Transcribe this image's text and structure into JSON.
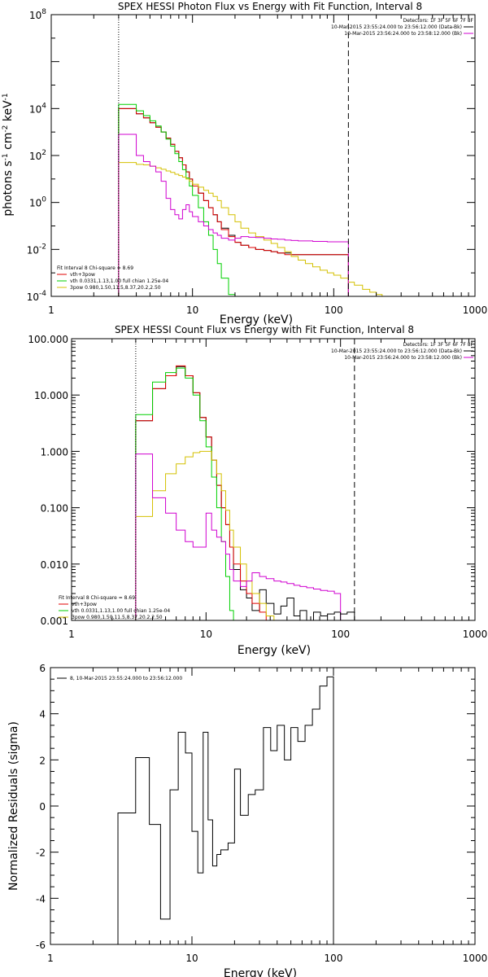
{
  "panels": [
    {
      "id": "photon",
      "title": "SPEX HESSI Photon Flux vs Energy with Fit Function, Interval 8",
      "xlabel": "Energy (keV)",
      "ylabel_main": "photons s",
      "ylabel_sup1": "-1",
      "ylabel_mid": " cm",
      "ylabel_sup2": "-2",
      "ylabel_end": " keV",
      "ylabel_sup3": "-1",
      "ytick_base": "10",
      "yticks": [
        {
          "value": 0.0001,
          "exp": "-4"
        },
        {
          "value": 0.01,
          "exp": "-2"
        },
        {
          "value": 1,
          "exp": "0"
        },
        {
          "value": 100,
          "exp": "2"
        },
        {
          "value": 10000,
          "exp": "4"
        },
        {
          "value": 100000000.0,
          "exp": "8"
        }
      ],
      "xticks": [
        "1",
        "10",
        "100",
        "1000"
      ],
      "legend_right": [
        "Detectors: 1F 3F 5F 6F 7F 8F",
        "10-Mar-2015 23:55:24.000 to 23:56:12.000 (Data-Bk)",
        "10-Mar-2015 23:56:24.000 to 23:58:12.000 (Bk)"
      ],
      "legend_left": [
        "Fit Interval 8   Chi-square = 8.69",
        "vth+3pow",
        "vth 0.0331,1.13,1.00  full chian 1.25e-04",
        "3pow 0.980,1.50,11.5,8.37,20.2,2.50"
      ]
    },
    {
      "id": "count",
      "title": "SPEX HESSI Count Flux vs Energy with Fit Function, Interval 8",
      "xlabel": "Energy (keV)",
      "yticks": [
        "100.000",
        "10.000",
        "1.000",
        "0.100",
        "0.010",
        "0.001"
      ],
      "xticks": [
        "1",
        "10",
        "100",
        "1000"
      ],
      "legend_right": [
        "Detectors: 1F 3F 5F 6F 7F 8F",
        "10-Mar-2015 23:55:24.000 to 23:56:12.000 (Data-Bk)",
        "10-Mar-2015 23:56:24.000 to 23:58:12.000 (Bk)"
      ],
      "legend_left": [
        "Fit Interval 8   Chi-square = 8.69",
        "vth+3pow",
        "vth 0.0331,1.13,1.00  full chian 1.25e-04",
        "3pow 0.980,1.50,11.5,8.37,20.2,2.50"
      ]
    },
    {
      "id": "resid",
      "ylabel": "Normalized Residuals (sigma)",
      "xlabel": "Energy (keV)",
      "yticks": [
        "6",
        "4",
        "2",
        "0",
        "-2",
        "-4",
        "-6"
      ],
      "xticks": [
        "1",
        "10",
        "100",
        "1000"
      ],
      "legend": "8, 10-Mar-2015 23:55:24.000 to 23:56:12.000"
    }
  ],
  "colors": {
    "data": "#000000",
    "total_fit": "#e00000",
    "thermal": "#00d000",
    "power_law": "#d4c000",
    "background": "#d000d0"
  },
  "chart_data": [
    {
      "type": "line",
      "title": "SPEX HESSI Photon Flux vs Energy with Fit Function, Interval 8",
      "xlabel": "Energy (keV)",
      "ylabel": "photons s^-1 cm^-2 keV^-1",
      "xscale": "log",
      "yscale": "log",
      "xlim": [
        1,
        1000
      ],
      "ylim": [
        0.0001,
        100000000
      ],
      "vlines": [
        3,
        127
      ],
      "x_edges": [
        3,
        3.5,
        4,
        4.5,
        5,
        5.5,
        6,
        6.5,
        7,
        7.5,
        8,
        8.5,
        9,
        9.5,
        10,
        11,
        12,
        13,
        14,
        15,
        16,
        18,
        20,
        22,
        25,
        28,
        32,
        36,
        40,
        45,
        50,
        56,
        63,
        71,
        80,
        90,
        100,
        112,
        127,
        140,
        160,
        180,
        200,
        220,
        240,
        260
      ],
      "series": [
        {
          "name": "data",
          "values": [
            10000,
            10000,
            6000,
            4000,
            2500,
            1600,
            1000,
            550,
            300,
            150,
            80,
            40,
            20,
            10,
            5,
            2.5,
            1.2,
            0.6,
            0.3,
            0.15,
            0.08,
            0.04,
            0.02,
            0.015,
            0.012,
            0.01,
            0.009,
            0.008,
            0.007,
            0.007,
            0.006,
            0.006,
            0.006,
            0.006,
            0.006,
            0.006,
            0.006,
            0.006
          ]
        },
        {
          "name": "vth+3pow",
          "values": [
            10000,
            10000,
            6000,
            4000,
            2500,
            1600,
            1000,
            550,
            300,
            150,
            80,
            40,
            20,
            10,
            5,
            2.5,
            1.2,
            0.6,
            0.3,
            0.15,
            0.07,
            0.035,
            0.02,
            0.015,
            0.012,
            0.01,
            0.009,
            0.008,
            0.007,
            0.006,
            0.006,
            0.006,
            0.006,
            0.006,
            0.006,
            0.006,
            0.006,
            0.006
          ]
        },
        {
          "name": "vth 0.0331,1.13,1.00",
          "values": [
            15000,
            15000,
            8000,
            5000,
            3000,
            1800,
            1000,
            500,
            250,
            120,
            55,
            25,
            11,
            5,
            2,
            0.6,
            0.15,
            0.04,
            0.01,
            0.0025,
            0.0006,
            0.00012
          ]
        },
        {
          "name": "3pow 0.980,1.50,11.5,8.37,20.2,2.50",
          "values": [
            50,
            50,
            42,
            40,
            35,
            30,
            26,
            22,
            19,
            16,
            14,
            12,
            10,
            8,
            6,
            4.5,
            3.3,
            2.5,
            1.8,
            1.2,
            0.6,
            0.3,
            0.15,
            0.08,
            0.05,
            0.035,
            0.025,
            0.018,
            0.012,
            0.008,
            0.005,
            0.0035,
            0.0025,
            0.0018,
            0.0013,
            0.001,
            0.0008,
            0.0006,
            0.0004,
            0.0003,
            0.0002,
            0.00015,
            0.00012,
            0.0001,
            0.0001
          ]
        },
        {
          "name": "background",
          "values": [
            800,
            800,
            100,
            55,
            35,
            20,
            8,
            1.5,
            0.5,
            0.3,
            0.2,
            0.5,
            0.8,
            0.4,
            0.25,
            0.15,
            0.1,
            0.07,
            0.05,
            0.04,
            0.03,
            0.025,
            0.03,
            0.035,
            0.033,
            0.032,
            0.03,
            0.028,
            0.027,
            0.025,
            0.024,
            0.023,
            0.023,
            0.022,
            0.022,
            0.021,
            0.021,
            0.021
          ]
        }
      ]
    },
    {
      "type": "line",
      "title": "SPEX HESSI Count Flux vs Energy with Fit Function, Interval 8",
      "xlabel": "Energy (keV)",
      "xscale": "log",
      "yscale": "log",
      "xlim": [
        1,
        1000
      ],
      "ylim": [
        0.001,
        100
      ],
      "vlines": [
        3,
        127
      ],
      "x_edges": [
        3,
        4,
        5,
        6,
        7,
        8,
        9,
        10,
        11,
        12,
        13,
        14,
        15,
        16,
        18,
        20,
        22,
        25,
        28,
        32,
        36,
        40,
        45,
        50,
        56,
        63,
        71,
        80,
        90,
        100,
        112,
        127
      ],
      "series": [
        {
          "name": "data",
          "values": [
            3.5,
            13,
            22,
            32,
            22,
            11,
            4,
            1.8,
            0.7,
            0.25,
            0.1,
            0.05,
            0.02,
            0.008,
            0.0035,
            0.0025,
            0.0015,
            0.0035,
            0.002,
            0.0013,
            0.0018,
            0.0025,
            0.0012,
            0.0015,
            0.001,
            0.0014,
            0.0012,
            0.0013,
            0.0014,
            0.0013,
            0.0014
          ]
        },
        {
          "name": "vth+3pow",
          "values": [
            3.5,
            13,
            22,
            33,
            22,
            11,
            4,
            1.8,
            0.7,
            0.25,
            0.1,
            0.05,
            0.02,
            0.01,
            0.005,
            0.003,
            0.002,
            0.0014,
            0.001
          ]
        },
        {
          "name": "vth 0.0331,1.13,1.00",
          "values": [
            4.5,
            17,
            25,
            30,
            20,
            10,
            3.5,
            1.2,
            0.35,
            0.1,
            0.025,
            0.006,
            0.0015,
            0.0005
          ]
        },
        {
          "name": "3pow 0.980,1.50,11.5,8.37,20.2,2.50",
          "values": [
            0.07,
            0.2,
            0.4,
            0.6,
            0.8,
            0.95,
            1.0,
            1.0,
            0.7,
            0.4,
            0.2,
            0.09,
            0.04,
            0.02,
            0.01,
            0.005,
            0.003,
            0.002,
            0.0012
          ]
        },
        {
          "name": "background",
          "values": [
            0.9,
            0.15,
            0.08,
            0.04,
            0.025,
            0.02,
            0.02,
            0.08,
            0.04,
            0.03,
            0.025,
            0.015,
            0.008,
            0.005,
            0.004,
            0.005,
            0.007,
            0.006,
            0.0055,
            0.005,
            0.0048,
            0.0045,
            0.0042,
            0.004,
            0.0038,
            0.0036,
            0.0034,
            0.0033,
            0.003
          ]
        }
      ]
    },
    {
      "type": "line",
      "xlabel": "Energy (keV)",
      "ylabel": "Normalized Residuals (sigma)",
      "xscale": "log",
      "xlim": [
        1,
        1000
      ],
      "ylim": [
        -6,
        6
      ],
      "x_edges": [
        3,
        4,
        5,
        6,
        7,
        8,
        9,
        10,
        11,
        12,
        13,
        14,
        15,
        16,
        18,
        20,
        22,
        25,
        28,
        32,
        36,
        40,
        45,
        50,
        56,
        63,
        71,
        80,
        90,
        100,
        112,
        127
      ],
      "series": [
        {
          "name": "8, 10-Mar-2015 23:55:24.000 to 23:56:12.000",
          "values": [
            -0.3,
            2.1,
            -0.8,
            -4.9,
            0.7,
            3.2,
            2.3,
            -1.1,
            -2.9,
            3.2,
            -0.6,
            -2.6,
            -2.1,
            -1.9,
            -1.6,
            1.6,
            -0.4,
            0.5,
            0.7,
            3.4,
            2.4,
            3.5,
            2.0,
            3.4,
            2.8,
            3.5,
            4.2,
            5.2,
            5.6
          ]
        }
      ]
    }
  ]
}
